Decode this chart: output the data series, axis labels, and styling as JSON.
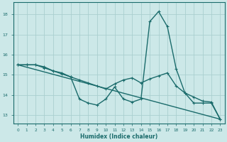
{
  "xlabel": "Humidex (Indice chaleur)",
  "xlim": [
    -0.5,
    23.5
  ],
  "ylim": [
    12.6,
    18.6
  ],
  "yticks": [
    13,
    14,
    15,
    16,
    17,
    18
  ],
  "xticks": [
    0,
    1,
    2,
    3,
    4,
    5,
    6,
    7,
    8,
    9,
    10,
    11,
    12,
    13,
    14,
    15,
    16,
    17,
    18,
    19,
    20,
    21,
    22,
    23
  ],
  "bg_color": "#cce8e8",
  "grid_color": "#aacfcf",
  "line_color": "#1a6b6b",
  "line1_x": [
    0,
    1,
    2,
    3,
    4,
    5,
    6,
    7,
    8,
    9,
    10,
    11,
    12,
    13,
    14,
    15,
    16,
    17,
    18,
    19,
    20,
    21,
    22,
    23
  ],
  "line1_y": [
    15.5,
    15.5,
    15.5,
    15.4,
    15.2,
    15.1,
    14.9,
    13.8,
    13.6,
    13.5,
    13.8,
    14.4,
    13.8,
    13.65,
    13.8,
    17.65,
    18.15,
    17.4,
    15.3,
    14.1,
    13.6,
    13.6,
    13.6,
    12.8
  ],
  "line2_x": [
    0,
    1,
    2,
    3,
    4,
    5,
    6,
    7,
    8,
    9,
    10,
    11,
    12,
    13,
    14,
    15,
    16,
    17,
    18,
    19,
    20,
    21,
    22,
    23
  ],
  "line2_y": [
    15.5,
    15.5,
    15.5,
    15.35,
    15.2,
    15.05,
    14.9,
    14.75,
    14.6,
    14.45,
    14.3,
    14.55,
    14.75,
    14.85,
    14.6,
    14.8,
    14.95,
    15.1,
    14.45,
    14.1,
    13.9,
    13.7,
    13.65,
    12.8
  ],
  "line3_x": [
    0,
    23
  ],
  "line3_y": [
    15.5,
    12.8
  ]
}
